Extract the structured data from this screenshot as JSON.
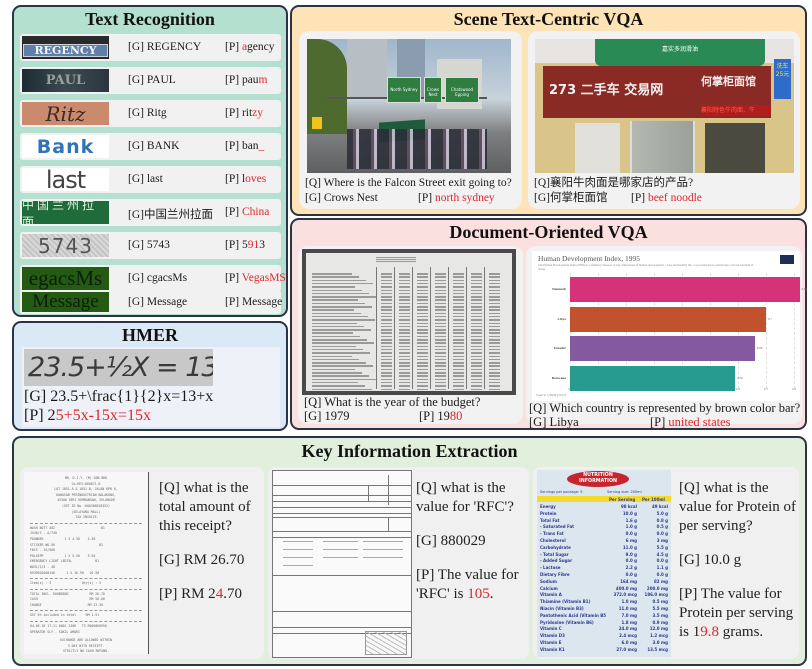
{
  "text_recognition": {
    "title": "Text Recognition",
    "rows": [
      {
        "image_text": "REGENCY",
        "gt": "[G] REGENCY",
        "pred_prefix": "[P] ",
        "pred_ok": "",
        "pred_err": "a",
        "pred_rest": "gency"
      },
      {
        "image_text": "PAUL",
        "gt": "[G] PAUL",
        "pred_prefix": "[P] ",
        "pred_ok": "pau",
        "pred_err": "m",
        "pred_rest": ""
      },
      {
        "image_text": "Ritz",
        "gt": "[G] Ritg",
        "pred_prefix": "[P] ",
        "pred_ok": "rit",
        "pred_err": "zy",
        "pred_rest": ""
      },
      {
        "image_text": "Bank",
        "gt": "[G] BANK",
        "pred_prefix": "[P] ",
        "pred_ok": "ban",
        "pred_err": "_",
        "pred_rest": ""
      },
      {
        "image_text": "last",
        "gt": "[G] last",
        "pred_prefix": "[P] ",
        "pred_ok": "l",
        "pred_err": "oves",
        "pred_rest": ""
      },
      {
        "image_text": "中国兰州拉面",
        "gt": "[G]中国兰州拉面",
        "pred_prefix": "[P] ",
        "pred_ok": "",
        "pred_err": "China",
        "pred_rest": ""
      },
      {
        "image_text": "5743",
        "gt": "[G] 5743",
        "pred_prefix": "[P] ",
        "pred_ok": "5",
        "pred_err": "91",
        "pred_rest": "3"
      },
      {
        "image_text": "egacsMs",
        "gt": "[G] cgacsMs",
        "pred_prefix": "[P] ",
        "pred_ok": "",
        "pred_err": "VegasMS",
        "pred_rest": ""
      },
      {
        "image_text": "Message",
        "gt": "[G] Message",
        "pred_prefix": "[P] ",
        "pred_ok": "Message",
        "pred_err": "",
        "pred_rest": ""
      }
    ]
  },
  "hmer": {
    "title": "HMER",
    "image_text": "23.5+½X = 13+X",
    "gt": "[G] 23.5+\\frac{1}{2}x=13+x",
    "pred_prefix": "[P] 2",
    "pred_err": "5+5x-15x=15x"
  },
  "scene_vqa": {
    "title": "Scene Text-Centric VQA",
    "left": {
      "sign_texts": [
        "North Sydney",
        "Crows Nest",
        "Chatswood Epping"
      ],
      "question": "[Q] Where is the Falcon Street exit going to?",
      "gt": "[G] Crows Nest",
      "pred_prefix": "[P] ",
      "pred_err": "north sydney"
    },
    "right": {
      "sign_texts": [
        "嘉实多润滑油",
        "273 二手车 交易网",
        "何掌柜面馆",
        "襄阳特色牛肉面、牛",
        "洗车 25元"
      ],
      "question": "[Q]襄阳牛肉面是哪家店的产品?",
      "gt": "[G]何掌柜面馆",
      "pred_prefix": "[P] ",
      "pred_err": "beef noodle"
    }
  },
  "doc_vqa": {
    "title": "Document-Oriented VQA",
    "left": {
      "question": "[Q] What is the year of the budget?",
      "gt": "[G] 1979",
      "pred_prefix": "[P] 19",
      "pred_err": "80"
    },
    "right": {
      "question": "[Q] Which country is represented by brown color bar?",
      "gt": "[G] Libya",
      "pred_prefix": "[P] ",
      "pred_err": "united states"
    }
  },
  "chart_data": {
    "type": "bar",
    "orientation": "horizontal",
    "title": "Human Development Index, 1995",
    "subtitle": "The Human Development Index (HDI) is a summary measure of key dimensions of human development: a long and healthy life, a good education, and having a decent standard of living.",
    "categories": [
      "Denmark",
      "Libya",
      "Ecuador",
      "Botswana"
    ],
    "values": [
      0.82,
      0.7,
      0.66,
      0.59
    ],
    "colors": [
      "#d6327a",
      "#c0532e",
      "#85599f",
      "#289b90"
    ],
    "xlabel": "",
    "ylabel": "",
    "xlim": [
      0,
      0.8
    ],
    "xticks": [
      "0",
      "0.1",
      "0.2",
      "0.3",
      "0.4",
      "0.5",
      "0.6",
      "0.7",
      "0.8"
    ],
    "grid": true,
    "source": "Source: UNDP (2015)"
  },
  "kie": {
    "title": "Key Information Extraction",
    "items": [
      {
        "question": "[Q] what is the total amount of this receipt?",
        "gt": "[G] RM 26.70",
        "pred_prefix": "[P] RM 2",
        "pred_err": "4",
        "pred_rest": ".70"
      },
      {
        "question": "[Q] what is the value for 'RFC'?",
        "gt": "[G] 880029",
        "pred_prefix": "[P] The value for 'RFC' is ",
        "pred_err": "105",
        "pred_rest": "."
      },
      {
        "question": "[Q] what is the value for Protein of per serving?",
        "gt": "[G] 10.0 g",
        "pred_prefix": "[P] The value for Protein per serving is 1",
        "pred_err": "9.8",
        "pred_rest": " grams."
      }
    ],
    "nutrition": {
      "header": "NUTRITION INFORMATION",
      "servings": "Servings per package: 5",
      "serving_size": "Serving size: 200ml",
      "col1": "Per Serving",
      "col2": "Per 100ml",
      "rows": [
        [
          "Energy",
          "98 kcal",
          "49 kcal"
        ],
        [
          "Protein",
          "10.0 g",
          "5.0 g"
        ],
        [
          "Total Fat",
          "1.6 g",
          "0.8 g"
        ],
        [
          "- Saturated Fat",
          "1.0 g",
          "0.5 g"
        ],
        [
          "- Trans Fat",
          "0.0 g",
          "0.0 g"
        ],
        [
          "Cholesterol",
          "6 mg",
          "3 mg"
        ],
        [
          "Carbohydrate",
          "11.0 g",
          "5.5 g"
        ],
        [
          "- Total Sugar",
          "9.0 g",
          "4.5 g"
        ],
        [
          "- Added Sugar",
          "0.0 g",
          "0.0 g"
        ],
        [
          "- Lactose",
          "2.2 g",
          "1.1 g"
        ],
        [
          "Dietary Fibre",
          "0.0 g",
          "0.0 g"
        ],
        [
          "Sodium",
          "164 mg",
          "82 mg"
        ],
        [
          "Calcium",
          "400.0 mg",
          "200.0 mg"
        ],
        [
          "Vitamin A",
          "372.0 mcg",
          "186.0 mcg"
        ],
        [
          "Thiamine (Vitamin B1)",
          "1.0 mg",
          "0.5 mg"
        ],
        [
          "Niacin (Vitamin B3)",
          "11.0 mg",
          "5.5 mg"
        ],
        [
          "Pantothenic Acid (Vitamin B5)",
          "7.0 mg",
          "3.5 mg"
        ],
        [
          "Pyridoxine (Vitamin B6)",
          "1.8 mg",
          "0.9 mg"
        ],
        [
          "Vitamin C",
          "24.0 mg",
          "12.0 mg"
        ],
        [
          "Vitamin D3",
          "2.4 mcg",
          "1.2 mcg"
        ],
        [
          "Vitamin E",
          "6.0 mg",
          "3.0 mg"
        ],
        [
          "Vitamin K1",
          "27.0 mcg",
          "13.5 mcg"
        ]
      ]
    }
  },
  "colors": {
    "error_red": "#e0262b",
    "tr_bg": "#b3e0cf",
    "hmer_bg": "#dbe8f6",
    "scene_bg": "#fde3b5",
    "doc_bg": "#fbe0e0",
    "kie_bg": "#e1efdc",
    "border": "#2b3447"
  }
}
